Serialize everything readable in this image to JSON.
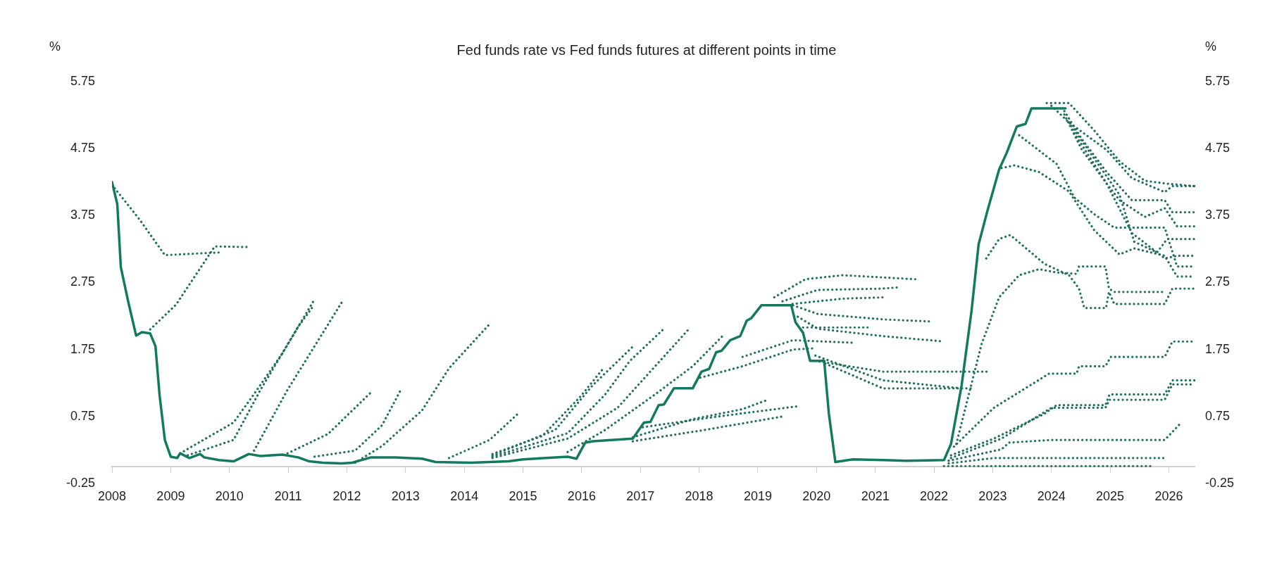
{
  "chart_data": {
    "type": "line",
    "title": "Fed funds rate vs Fed funds futures at different points in time",
    "ylabel": "%",
    "y2label": "%",
    "xlim": [
      2008,
      2026.45
    ],
    "xticks": [
      2008,
      2009,
      2010,
      2011,
      2012,
      2013,
      2014,
      2015,
      2016,
      2017,
      2018,
      2019,
      2020,
      2021,
      2022,
      2023,
      2024,
      2025,
      2026
    ],
    "ylim": [
      -0.25,
      5.75
    ],
    "yticks": [
      -0.25,
      0.75,
      1.75,
      2.75,
      3.75,
      4.75,
      5.75
    ],
    "y2lim": [
      -0.25,
      5.75
    ],
    "y2ticks": [
      -0.25,
      0.75,
      1.75,
      2.75,
      3.75,
      4.75,
      5.75
    ],
    "grid": false,
    "legend": false,
    "marker": "none",
    "series": [
      {
        "color": "#137a5e",
        "line_style": "solid",
        "x": [
          2008,
          2008.09,
          2008.15,
          2008.28,
          2008.41,
          2008.51,
          2008.65,
          2008.74,
          2008.81,
          2008.9,
          2009,
          2009.11,
          2009.16,
          2009.32,
          2009.5,
          2009.57,
          2009.82,
          2010.07,
          2010.33,
          2010.53,
          2010.9,
          2011.17,
          2011.36,
          2011.59,
          2011.91,
          2012.09,
          2012.41,
          2012.83,
          2013.28,
          2013.51,
          2014.11,
          2014.75,
          2015,
          2015.76,
          2015.91,
          2016.06,
          2016.19,
          2016.87,
          2017.06,
          2017.17,
          2017.31,
          2017.4,
          2017.57,
          2017.89,
          2018.04,
          2018.17,
          2018.29,
          2018.38,
          2018.53,
          2018.7,
          2018.81,
          2018.89,
          2019.06,
          2019.57,
          2019.64,
          2019.77,
          2019.89,
          2020.13,
          2020.21,
          2020.32,
          2020.62,
          2021.13,
          2021.53,
          2022.17,
          2022.29,
          2022.47,
          2022.64,
          2022.76,
          2022.91,
          2023.11,
          2023.24,
          2023.41,
          2023.56,
          2023.66,
          2024.24
        ],
        "values": [
          4.25,
          3.92,
          2.98,
          2.45,
          1.96,
          2.01,
          1.99,
          1.8,
          1.07,
          0.4,
          0.15,
          0.13,
          0.2,
          0.13,
          0.19,
          0.14,
          0.1,
          0.08,
          0.19,
          0.16,
          0.18,
          0.14,
          0.08,
          0.06,
          0.05,
          0.06,
          0.14,
          0.14,
          0.12,
          0.07,
          0.06,
          0.08,
          0.11,
          0.15,
          0.12,
          0.36,
          0.38,
          0.42,
          0.66,
          0.67,
          0.92,
          0.93,
          1.17,
          1.17,
          1.42,
          1.46,
          1.71,
          1.73,
          1.89,
          1.95,
          2.18,
          2.22,
          2.41,
          2.41,
          2.16,
          2.0,
          1.58,
          1.58,
          0.79,
          0.07,
          0.11,
          0.1,
          0.09,
          0.1,
          0.34,
          1.21,
          2.33,
          3.32,
          3.82,
          4.44,
          4.69,
          5.08,
          5.12,
          5.35,
          5.35
        ]
      },
      {
        "color": "#22705a",
        "line_style": "dotted",
        "x": [
          2008,
          2008.47,
          2008.9,
          2009.84
        ],
        "values": [
          4.21,
          3.69,
          3.16,
          3.2
        ]
      },
      {
        "color": "#22705a",
        "line_style": "dotted",
        "x": [
          2008.65,
          2009.09,
          2009.75,
          2010.35
        ],
        "values": [
          2.05,
          2.42,
          3.29,
          3.28
        ]
      },
      {
        "color": "#22705a",
        "line_style": "dotted",
        "x": [
          2009.16,
          2010.07,
          2010.44,
          2010.9,
          2011.43
        ],
        "values": [
          0.2,
          0.66,
          1.11,
          1.69,
          2.47
        ]
      },
      {
        "color": "#22705a",
        "line_style": "dotted",
        "x": [
          2009.29,
          2010.07,
          2010.53,
          2011.17,
          2011.43
        ],
        "values": [
          0.17,
          0.4,
          1.15,
          2.09,
          2.4
        ]
      },
      {
        "color": "#22705a",
        "line_style": "dotted",
        "x": [
          2010.42,
          2010.99,
          2011.91
        ],
        "values": [
          0.24,
          1.15,
          2.45
        ]
      },
      {
        "color": "#22705a",
        "line_style": "dotted",
        "x": [
          2010.99,
          2011.68,
          2012.41
        ],
        "values": [
          0.2,
          0.49,
          1.11
        ]
      },
      {
        "color": "#22705a",
        "line_style": "dotted",
        "x": [
          2011.45,
          2012.14,
          2012.6,
          2012.92
        ],
        "values": [
          0.15,
          0.24,
          0.62,
          1.15
        ]
      },
      {
        "color": "#22705a",
        "line_style": "dotted",
        "x": [
          2012.14,
          2012.6,
          2013.28,
          2013.74,
          2014.41
        ],
        "values": [
          0.06,
          0.31,
          0.84,
          1.47,
          2.11
        ]
      },
      {
        "color": "#22705a",
        "line_style": "dotted",
        "x": [
          2013.74,
          2014.43,
          2014.9
        ],
        "values": [
          0.13,
          0.4,
          0.78
        ]
      },
      {
        "color": "#22705a",
        "line_style": "dotted",
        "x": [
          2014.48,
          2015.33,
          2015.97,
          2016.38
        ],
        "values": [
          0.19,
          0.46,
          1.04,
          1.48
        ]
      },
      {
        "color": "#22705a",
        "line_style": "dotted",
        "x": [
          2014.48,
          2015.55,
          2016.18,
          2016.89
        ],
        "values": [
          0.17,
          0.55,
          1.21,
          1.81
        ]
      },
      {
        "color": "#22705a",
        "line_style": "dotted",
        "x": [
          2014.48,
          2015.76,
          2016.4,
          2016.82,
          2017.4
        ],
        "values": [
          0.15,
          0.5,
          1.08,
          1.58,
          2.06
        ]
      },
      {
        "color": "#22705a",
        "line_style": "dotted",
        "x": [
          2014.48,
          2015.76,
          2016.61,
          2017.25,
          2017.85
        ],
        "values": [
          0.13,
          0.42,
          0.88,
          1.5,
          2.08
        ]
      },
      {
        "color": "#22705a",
        "line_style": "dotted",
        "x": [
          2015.76,
          2016.4,
          2017.25,
          2017.89,
          2018.42
        ],
        "values": [
          0.22,
          0.55,
          1.08,
          1.5,
          1.97
        ]
      },
      {
        "color": "#22705a",
        "line_style": "dotted",
        "x": [
          2016.87,
          2017.89,
          2018.74,
          2019.17
        ],
        "values": [
          0.44,
          0.71,
          0.86,
          1.0
        ]
      },
      {
        "color": "#22705a",
        "line_style": "dotted",
        "x": [
          2017.04,
          2018.32,
          2019.66
        ],
        "values": [
          0.59,
          0.75,
          0.9
        ]
      },
      {
        "color": "#22705a",
        "line_style": "dotted",
        "x": [
          2016.87,
          2018.1,
          2019.42
        ],
        "values": [
          0.38,
          0.55,
          0.75
        ]
      },
      {
        "color": "#22705a",
        "line_style": "dotted",
        "x": [
          2019.28,
          2019.81,
          2020.45,
          2021.68
        ],
        "values": [
          2.53,
          2.8,
          2.86,
          2.8
        ]
      },
      {
        "color": "#22705a",
        "line_style": "dotted",
        "x": [
          2019.42,
          2020.02,
          2021.13,
          2021.42
        ],
        "values": [
          2.47,
          2.64,
          2.66,
          2.68
        ]
      },
      {
        "color": "#22705a",
        "line_style": "dotted",
        "x": [
          2019.59,
          2020.45,
          2021.16
        ],
        "values": [
          2.43,
          2.51,
          2.53
        ]
      },
      {
        "color": "#22705a",
        "line_style": "dotted",
        "x": [
          2019.6,
          2020.02,
          2021.13,
          2021.93
        ],
        "values": [
          2.41,
          2.28,
          2.2,
          2.17
        ]
      },
      {
        "color": "#22705a",
        "line_style": "dotted",
        "x": [
          2019.68,
          2020.02,
          2021.13,
          2022.17
        ],
        "values": [
          2.24,
          2.06,
          1.95,
          1.87
        ]
      },
      {
        "color": "#22705a",
        "line_style": "dotted",
        "x": [
          2019.77,
          2020.9
        ],
        "values": [
          2.08,
          2.08
        ]
      },
      {
        "color": "#22705a",
        "line_style": "dotted",
        "x": [
          2018.74,
          2019.6,
          2020.66
        ],
        "values": [
          1.64,
          1.89,
          1.85
        ]
      },
      {
        "color": "#22705a",
        "line_style": "dotted",
        "x": [
          2018.02,
          2018.74,
          2019.6,
          2019.98
        ],
        "values": [
          1.33,
          1.5,
          1.75,
          1.77
        ]
      },
      {
        "color": "#22705a",
        "line_style": "dotted",
        "x": [
          2019.98,
          2021.13,
          2022.94
        ],
        "values": [
          1.58,
          1.42,
          1.42
        ]
      },
      {
        "color": "#22705a",
        "line_style": "dotted",
        "x": [
          2019.98,
          2021.13,
          2022.47
        ],
        "values": [
          1.66,
          1.29,
          1.17
        ]
      },
      {
        "color": "#22705a",
        "line_style": "dotted",
        "x": [
          2020.15,
          2021.13,
          2022.68
        ],
        "values": [
          1.54,
          1.17,
          1.17
        ]
      },
      {
        "color": "#22705a",
        "line_style": "dotted",
        "x": [
          2023.92,
          2024.3,
          2024.73,
          2025.16,
          2025.59,
          2025.93,
          2026.44
        ],
        "values": [
          5.43,
          5.43,
          5.02,
          4.56,
          4.27,
          4.23,
          4.19
        ]
      },
      {
        "color": "#22705a",
        "line_style": "dotted",
        "x": [
          2024.0,
          2024.3,
          2024.94,
          2025.37,
          2025.93,
          2026.06,
          2026.44
        ],
        "values": [
          5.39,
          5.14,
          4.73,
          4.31,
          4.1,
          4.19,
          4.19
        ]
      },
      {
        "color": "#22705a",
        "line_style": "dotted",
        "x": [
          2024.22,
          2024.52,
          2024.94,
          2025.37,
          2025.93,
          2026.06,
          2026.44
        ],
        "values": [
          5.31,
          4.89,
          4.4,
          3.98,
          3.98,
          3.8,
          3.8
        ]
      },
      {
        "color": "#22705a",
        "line_style": "dotted",
        "x": [
          2024.22,
          2024.52,
          2024.94,
          2025.16,
          2025.59,
          2025.93,
          2026.14,
          2026.44
        ],
        "values": [
          5.26,
          4.73,
          4.23,
          3.98,
          3.73,
          3.86,
          3.59,
          3.59
        ]
      },
      {
        "color": "#22705a",
        "line_style": "dotted",
        "x": [
          2024.3,
          2024.73,
          2025.16,
          2025.41,
          2025.8,
          2025.97,
          2026.44
        ],
        "values": [
          5.14,
          4.6,
          4.06,
          3.36,
          3.2,
          3.4,
          3.4
        ]
      },
      {
        "color": "#22705a",
        "line_style": "dotted",
        "x": [
          2024.39,
          2024.94,
          2025.37,
          2025.93,
          2026.14,
          2026.44
        ],
        "values": [
          4.98,
          4.23,
          3.49,
          3.11,
          3.15,
          3.15
        ]
      },
      {
        "color": "#22705a",
        "line_style": "dotted",
        "x": [
          2023.45,
          2024.09,
          2024.39,
          2024.73,
          2025.07,
          2025.93,
          2026.14,
          2026.44
        ],
        "values": [
          4.95,
          4.52,
          4.02,
          3.77,
          3.57,
          3.57,
          2.99,
          2.99
        ]
      },
      {
        "color": "#22705a",
        "line_style": "dotted",
        "x": [
          2023.15,
          2023.37,
          2023.79,
          2024.3,
          2024.73,
          2025.16,
          2025.41,
          2025.93,
          2026.14,
          2026.44
        ],
        "values": [
          4.46,
          4.5,
          4.4,
          4.11,
          3.53,
          3.17,
          3.26,
          3.15,
          2.84,
          2.84
        ]
      },
      {
        "color": "#22705a",
        "line_style": "dotted",
        "x": [
          2022.89,
          2023.11,
          2023.3,
          2023.88,
          2024.3,
          2024.47,
          2024.56,
          2024.93,
          2024.98,
          2025.07,
          2025.93,
          2026.06,
          2026.44
        ],
        "values": [
          3.11,
          3.4,
          3.46,
          3.03,
          2.86,
          2.66,
          2.37,
          2.37,
          2.61,
          2.43,
          2.43,
          2.66,
          2.66
        ]
      },
      {
        "color": "#22705a",
        "line_style": "dotted",
        "x": [
          2022.38,
          2022.81,
          2023.11,
          2023.45,
          2023.79,
          2024.09,
          2024.43,
          2024.47,
          2024.92,
          2024.98,
          2025.07,
          2025.93
        ],
        "values": [
          0.34,
          1.83,
          2.53,
          2.86,
          2.95,
          2.9,
          2.88,
          2.99,
          2.99,
          2.66,
          2.61,
          2.61
        ]
      },
      {
        "color": "#22705a",
        "line_style": "dotted",
        "x": [
          2022.34,
          2023.02,
          2023.96,
          2024.43,
          2024.47,
          2024.92,
          2025.01,
          2025.93,
          2026.06,
          2026.44
        ],
        "values": [
          0.3,
          0.88,
          1.39,
          1.39,
          1.5,
          1.5,
          1.64,
          1.64,
          1.87,
          1.87
        ]
      },
      {
        "color": "#22705a",
        "line_style": "dotted",
        "x": [
          2022.29,
          2023.02,
          2023.88,
          2024.09,
          2024.92,
          2024.99,
          2025.93,
          2026.06,
          2026.44
        ],
        "values": [
          0.17,
          0.42,
          0.79,
          0.92,
          0.92,
          1.08,
          1.08,
          1.29,
          1.29
        ]
      },
      {
        "color": "#22705a",
        "line_style": "dotted",
        "x": [
          2022.29,
          2023.15,
          2024.0,
          2024.92,
          2024.99,
          2025.93,
          2026.06,
          2026.44
        ],
        "values": [
          0.13,
          0.42,
          0.88,
          0.88,
          1.0,
          1.0,
          1.23,
          1.23
        ]
      },
      {
        "color": "#22705a",
        "line_style": "dotted",
        "x": [
          2022.25,
          2023.15,
          2023.28,
          2024.0,
          2025.93,
          2026.18
        ],
        "values": [
          0.09,
          0.26,
          0.36,
          0.4,
          0.4,
          0.63
        ]
      },
      {
        "color": "#22705a",
        "line_style": "dotted",
        "x": [
          2022.25,
          2023.02,
          2025.93
        ],
        "values": [
          0.05,
          0.13,
          0.13
        ]
      },
      {
        "color": "#22705a",
        "line_style": "dotted",
        "x": [
          2022.17,
          2025.69
        ],
        "values": [
          0.01,
          0.01
        ]
      }
    ]
  }
}
